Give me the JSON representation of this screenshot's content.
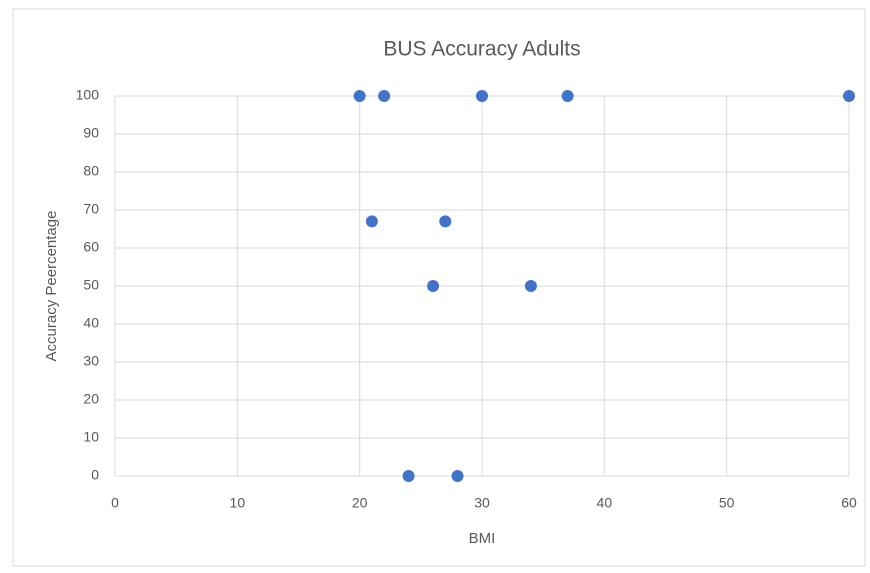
{
  "chart_data": {
    "type": "scatter",
    "title": "BUS Accuracy Adults",
    "x_label": "BMI",
    "y_label": "Accuracy  Peercentage",
    "series": [
      {
        "name": "Accuracy",
        "color": "#4472c4",
        "x": [
          20,
          22,
          30,
          37,
          60,
          21,
          27,
          26,
          34,
          24,
          28
        ],
        "values": [
          100,
          100,
          100,
          100,
          100,
          67,
          67,
          50,
          50,
          0,
          0
        ]
      }
    ],
    "xlim": [
      0,
      60
    ],
    "xticks": [
      0,
      10,
      20,
      30,
      40,
      50,
      60
    ],
    "ylim": [
      0,
      100
    ],
    "yticks": [
      0,
      10,
      20,
      30,
      40,
      50,
      60,
      70,
      80,
      90,
      100
    ],
    "grid": true
  }
}
